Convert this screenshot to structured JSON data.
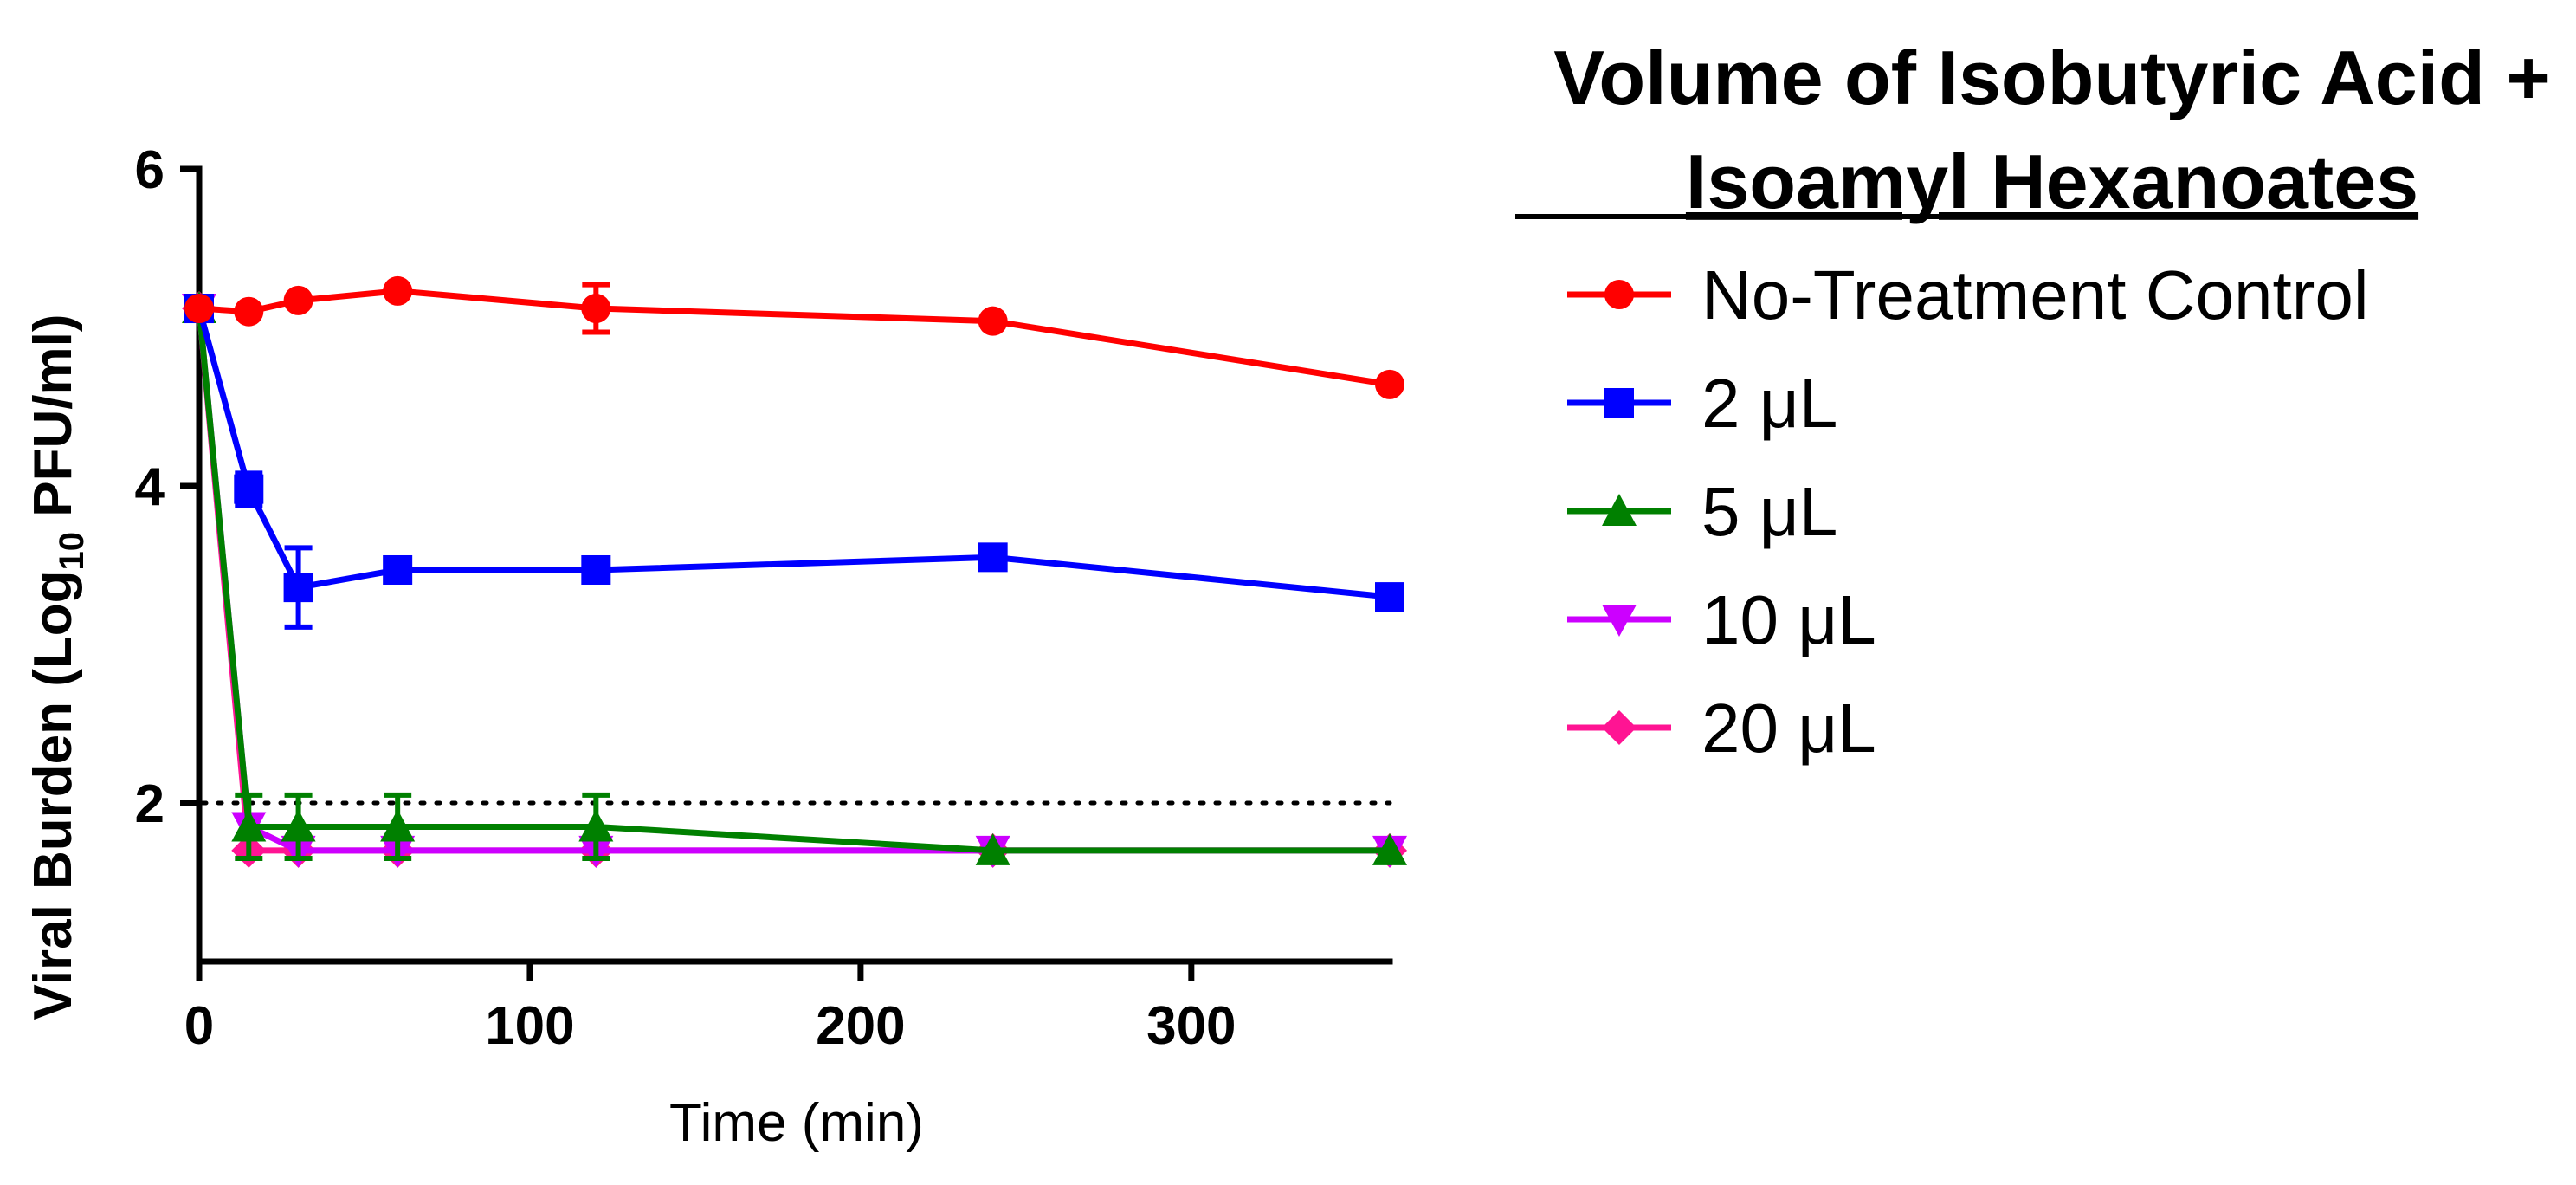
{
  "chart_data": {
    "type": "line",
    "xlabel": "Time (min)",
    "ylabel_parts": {
      "prefix": "Viral Burden (Log",
      "subscript": "10",
      "suffix": " PFU/ml)"
    },
    "xlim": [
      0,
      360
    ],
    "ylim": [
      1,
      6
    ],
    "x_ticks": [
      0,
      100,
      200,
      300
    ],
    "y_ticks": [
      2,
      4,
      6
    ],
    "grid": false,
    "reference_line": {
      "y": 2,
      "style": "dotted"
    },
    "legend": {
      "title_line1": "Volume of Isobutyric Acid +",
      "title_line2": "Isoamyl Hexanoates",
      "placement": "right"
    },
    "series": [
      {
        "name": "No-Treatment Control",
        "color": "#ff0000",
        "marker": "circle",
        "x": [
          0,
          15,
          30,
          60,
          120,
          240,
          360
        ],
        "values": [
          5.12,
          5.1,
          5.17,
          5.23,
          5.12,
          5.04,
          4.64
        ],
        "errors": [
          0,
          0,
          0,
          0,
          0.15,
          0,
          0
        ]
      },
      {
        "name": "2 μL",
        "color": "#0000ff",
        "marker": "square",
        "x": [
          0,
          15,
          30,
          60,
          120,
          240,
          360
        ],
        "values": [
          5.12,
          3.98,
          3.36,
          3.47,
          3.47,
          3.55,
          3.3
        ],
        "errors": [
          0,
          0.1,
          0.25,
          0,
          0,
          0,
          0
        ]
      },
      {
        "name": "5 μL",
        "color": "#008000",
        "marker": "triangle-up",
        "x": [
          0,
          15,
          30,
          60,
          120,
          240,
          360
        ],
        "values": [
          5.12,
          1.85,
          1.85,
          1.85,
          1.85,
          1.7,
          1.7
        ],
        "errors": [
          0,
          0.2,
          0.2,
          0.2,
          0.2,
          0,
          0
        ]
      },
      {
        "name": "10 μL",
        "color": "#cc00ff",
        "marker": "triangle-down",
        "x": [
          0,
          15,
          30,
          60,
          120,
          240,
          360
        ],
        "values": [
          5.12,
          1.85,
          1.7,
          1.7,
          1.7,
          1.7,
          1.7
        ],
        "errors": [
          0,
          0,
          0,
          0,
          0,
          0,
          0
        ]
      },
      {
        "name": "20 μL",
        "color": "#ff1493",
        "marker": "diamond",
        "x": [
          0,
          15,
          30,
          60,
          120,
          240,
          360
        ],
        "values": [
          5.12,
          1.7,
          1.7,
          1.7,
          1.7,
          1.7,
          1.7
        ],
        "errors": [
          0,
          0,
          0,
          0,
          0,
          0,
          0
        ]
      }
    ]
  }
}
